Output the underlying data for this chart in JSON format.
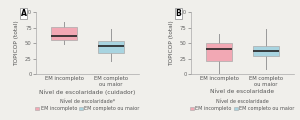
{
  "panel_A": {
    "label": "A",
    "xlabel": "Nível de escolaridade (cuidador)",
    "ylabel": "TOPICOP (total)",
    "ylim": [
      0,
      100
    ],
    "yticks": [
      0,
      25,
      50,
      75,
      100
    ],
    "boxes": [
      {
        "label": "EM incompleto",
        "color": "#F2A8B4",
        "median": 62,
        "q1": 55,
        "q3": 76,
        "whislo": 48,
        "whishi": 84
      },
      {
        "label": "EM completo\nou maior",
        "color": "#A8D4E0",
        "median": 45,
        "q1": 34,
        "q3": 53,
        "whislo": 22,
        "whishi": 73
      }
    ]
  },
  "panel_B": {
    "label": "B",
    "xlabel": "Nível de escolaridade",
    "ylabel": "TOPICOP (total)",
    "ylim": [
      0,
      100
    ],
    "yticks": [
      0,
      25,
      50,
      75,
      100
    ],
    "boxes": [
      {
        "label": "EM incompleto",
        "color": "#F2A8B4",
        "median": 40,
        "q1": 22,
        "q3": 50,
        "whislo": 3,
        "whishi": 65
      },
      {
        "label": "EM completo\nou maior",
        "color": "#A8D4E0",
        "median": 38,
        "q1": 30,
        "q3": 46,
        "whislo": 8,
        "whishi": 72
      }
    ]
  },
  "legend": {
    "label1": "EM incompleto",
    "label2": "EM completo ou maior",
    "color1": "#F2A8B4",
    "color2": "#A8D4E0",
    "prefix_A": "Nível de escolaridade*",
    "prefix_B": "Nível de escolaridade"
  },
  "background_color": "#f0efeb",
  "box_width": 0.55,
  "median_linewidth": 1.2,
  "whisker_color": "#999999",
  "edge_color": "#aaaaaa",
  "label_fontsize": 4.2,
  "tick_fontsize": 3.8,
  "legend_fontsize": 3.5,
  "ylabel_fontsize": 4.2
}
